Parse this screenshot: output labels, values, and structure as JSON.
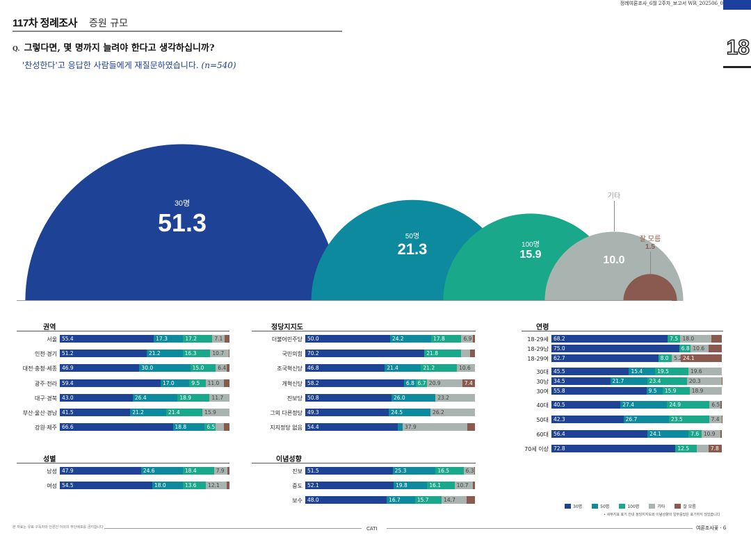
{
  "header": {
    "doc_ref": "정례여론조사_6월 2주차_보고서   WR_202506_0",
    "corner_number": "18"
  },
  "title": {
    "main": "117차 정례조사",
    "sub": "증원 규모"
  },
  "question": {
    "marker": "Q.",
    "text": "그렇다면, 몇 명까지 늘려야 한다고 생각하십니까?",
    "sub": "'찬성한다'고 응답한 사람들에게 재질문하였습니다.",
    "n": "(n=540)"
  },
  "colors": {
    "c30": "#1d4296",
    "c50": "#0e8a9e",
    "c100": "#19a88a",
    "etc": "#a9b3b0",
    "dk": "#8b5a4e"
  },
  "chart_data": [
    {
      "type": "area",
      "categories": [
        "30명",
        "50명",
        "100명",
        "기타",
        "잘 모름"
      ],
      "values": [
        51.3,
        21.3,
        15.9,
        10.0,
        1.5
      ],
      "labels": [
        "51.3",
        "21.3",
        "15.9",
        "10.0",
        "1.5"
      ]
    },
    {
      "type": "bar",
      "stacked": true,
      "series": [
        "30명",
        "50명",
        "100명",
        "기타",
        "잘 모름"
      ],
      "groups": [
        {
          "title": "권역",
          "rows": [
            {
              "label": "서울",
              "values": [
                55.4,
                17.3,
                17.2,
                7.1,
                3.0
              ],
              "show": [
                "55.4",
                "17.3",
                "17.2",
                "7.1",
                ""
              ]
            },
            {
              "label": "인천·경기",
              "values": [
                51.2,
                21.2,
                16.3,
                10.7,
                0.6
              ],
              "show": [
                "51.2",
                "21.2",
                "16.3",
                "10.7",
                ""
              ]
            },
            {
              "label": "대전·충청·세종",
              "values": [
                46.9,
                30.0,
                15.0,
                6.4,
                1.7
              ],
              "show": [
                "46.9",
                "30.0",
                "15.0",
                "6.4",
                ""
              ]
            },
            {
              "label": "광주·전라",
              "values": [
                59.4,
                17.0,
                9.5,
                11.0,
                3.1
              ],
              "show": [
                "59.4",
                "17.0",
                "9.5",
                "11.0",
                ""
              ]
            },
            {
              "label": "대구·경북",
              "values": [
                43.0,
                26.4,
                18.9,
                11.7,
                0
              ],
              "show": [
                "43.0",
                "26.4",
                "18.9",
                "11.7",
                ""
              ]
            },
            {
              "label": "부산·울산·경남",
              "values": [
                41.5,
                21.2,
                21.4,
                15.9,
                0
              ],
              "show": [
                "41.5",
                "21.2",
                "21.4",
                "15.9",
                ""
              ]
            },
            {
              "label": "강원·제주",
              "values": [
                66.6,
                18.8,
                6.5,
                5.0,
                3.1
              ],
              "show": [
                "66.6",
                "18.8",
                "6.5",
                "",
                ""
              ]
            }
          ]
        },
        {
          "title": "성별",
          "rows": [
            {
              "label": "남성",
              "values": [
                47.9,
                24.6,
                18.4,
                7.9,
                1.2
              ],
              "show": [
                "47.9",
                "24.6",
                "18.4",
                "7.9",
                ""
              ]
            },
            {
              "label": "여성",
              "values": [
                54.5,
                18.0,
                13.6,
                12.1,
                1.8
              ],
              "show": [
                "54.5",
                "18.0",
                "13.6",
                "12.1",
                ""
              ]
            }
          ]
        },
        {
          "title": "정당지지도",
          "rows": [
            {
              "label": "더불어민주당",
              "values": [
                50.0,
                24.2,
                17.8,
                6.9,
                1.1
              ],
              "show": [
                "50.0",
                "24.2",
                "17.8",
                "6.9",
                ""
              ]
            },
            {
              "label": "국민의힘",
              "values": [
                70.2,
                0,
                21.8,
                5.0,
                3.0
              ],
              "show": [
                "70.2",
                "",
                "21.8",
                "",
                ""
              ]
            },
            {
              "label": "조국혁신당",
              "values": [
                46.8,
                21.4,
                21.2,
                10.6,
                0
              ],
              "show": [
                "46.8",
                "21.4",
                "21.2",
                "10.6",
                ""
              ]
            },
            {
              "label": "개혁신당",
              "values": [
                58.2,
                6.8,
                6.7,
                20.9,
                7.4
              ],
              "show": [
                "58.2",
                "6.8",
                "6.7",
                "20.9",
                "7.4"
              ]
            },
            {
              "label": "진보당",
              "values": [
                50.8,
                26.0,
                0,
                23.2,
                0
              ],
              "show": [
                "50.8",
                "26.0",
                "",
                "23.2",
                ""
              ]
            },
            {
              "label": "그외 다른정당",
              "values": [
                49.3,
                24.5,
                0,
                26.2,
                0
              ],
              "show": [
                "49.3",
                "24.5",
                "",
                "26.2",
                ""
              ]
            },
            {
              "label": "지지정당 없음",
              "values": [
                54.4,
                3.0,
                0,
                37.9,
                4.7
              ],
              "show": [
                "54.4",
                "",
                "",
                "37.9",
                ""
              ]
            }
          ]
        },
        {
          "title": "이념성향",
          "rows": [
            {
              "label": "진보",
              "values": [
                51.5,
                25.3,
                16.5,
                6.3,
                0.4
              ],
              "show": [
                "51.5",
                "25.3",
                "16.5",
                "6.3",
                ""
              ]
            },
            {
              "label": "중도",
              "values": [
                52.1,
                19.8,
                16.1,
                10.7,
                1.3
              ],
              "show": [
                "52.1",
                "19.8",
                "16.1",
                "10.7",
                ""
              ]
            },
            {
              "label": "보수",
              "values": [
                48.0,
                16.7,
                15.7,
                14.7,
                4.9
              ],
              "show": [
                "48.0",
                "16.7",
                "15.7",
                "14.7",
                ""
              ]
            }
          ]
        },
        {
          "title": "연령",
          "rows": [
            {
              "label": "18-29세",
              "values": [
                68.2,
                0,
                7.5,
                18.0,
                6.3
              ],
              "show": [
                "68.2",
                "",
                "7.5",
                "18.0",
                ""
              ]
            },
            {
              "label": "18-29남",
              "values": [
                75.0,
                0,
                6.8,
                10.6,
                7.6
              ],
              "show": [
                "75.0",
                "",
                "6.8",
                "10.6",
                ""
              ]
            },
            {
              "label": "18-29여",
              "values": [
                62.7,
                0,
                8.0,
                5.2,
                24.1
              ],
              "show": [
                "62.7",
                "",
                "8.0",
                "5.2",
                "24.1"
              ]
            },
            {
              "label": "30대",
              "values": [
                45.5,
                15.4,
                19.5,
                19.6,
                0
              ],
              "show": [
                "45.5",
                "15.4",
                "19.5",
                "19.6",
                ""
              ]
            },
            {
              "label": "30남",
              "values": [
                34.5,
                21.7,
                23.4,
                20.3,
                0.1
              ],
              "show": [
                "34.5",
                "21.7",
                "23.4",
                "20.3",
                ""
              ]
            },
            {
              "label": "30여",
              "values": [
                55.8,
                9.5,
                15.9,
                18.9,
                0
              ],
              "show": [
                "55.8",
                "9.5",
                "15.9",
                "18.9",
                ""
              ]
            },
            {
              "label": "40대",
              "values": [
                40.5,
                27.4,
                24.9,
                6.5,
                0.7
              ],
              "show": [
                "40.5",
                "27.4",
                "24.9",
                "6.5",
                ""
              ]
            },
            {
              "label": "50대",
              "values": [
                42.3,
                26.7,
                23.5,
                7.4,
                0.1
              ],
              "show": [
                "42.3",
                "26.7",
                "23.5",
                "7.4",
                ""
              ]
            },
            {
              "label": "60대",
              "values": [
                56.4,
                24.1,
                7.6,
                10.9,
                1.0
              ],
              "show": [
                "56.4",
                "24.1",
                "7.6",
                "10.9",
                ""
              ]
            },
            {
              "label": "70세 이상",
              "values": [
                72.8,
                0,
                12.5,
                6.9,
                7.8
              ],
              "show": [
                "72.8",
                "",
                "12.5",
                "",
                "7.8"
              ]
            }
          ]
        }
      ]
    }
  ],
  "legend": [
    "30명",
    "50명",
    "100명",
    "기타",
    "잘 모름"
  ],
  "note": "• 세부지표 표기 안내 정당지지도와 이념성향의 일부응답은 표기하지 않았습니다",
  "footer": {
    "left": "본 자료는 유료 구독자와 언론인 이외의 무단배포를 금지합니다",
    "center": "CATI",
    "right": "여론조사꽃  ·  6"
  }
}
